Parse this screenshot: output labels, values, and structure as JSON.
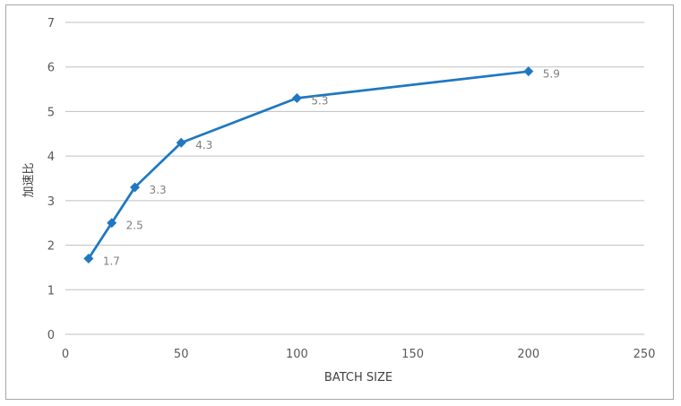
{
  "chart_data": {
    "type": "line",
    "title": "",
    "xlabel": "BATCH SIZE",
    "ylabel": "加速比",
    "xlim": [
      0,
      250
    ],
    "ylim": [
      0,
      7
    ],
    "x_ticks": [
      0,
      50,
      100,
      150,
      200,
      250
    ],
    "y_ticks": [
      0,
      1,
      2,
      3,
      4,
      5,
      6,
      7
    ],
    "grid": "horizontal",
    "legend": "none",
    "series": [
      {
        "color": "#1f78c1",
        "marker": "diamond",
        "x": [
          10,
          20,
          30,
          50,
          100,
          200
        ],
        "y": [
          1.7,
          2.5,
          3.3,
          4.3,
          5.3,
          5.9
        ],
        "labels": [
          "1.7",
          "2.5",
          "3.3",
          "4.3",
          "5.3",
          "5.9"
        ]
      }
    ]
  }
}
